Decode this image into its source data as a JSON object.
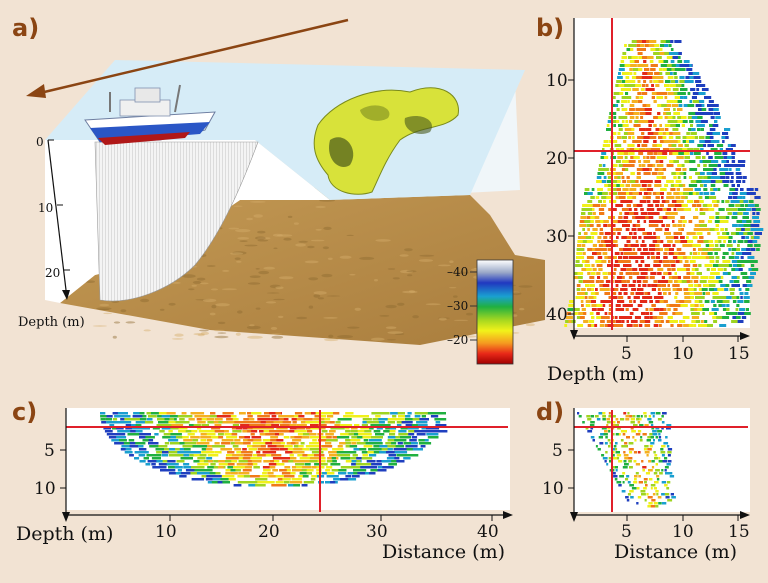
{
  "panel_labels": {
    "a": "a)",
    "b": "b)",
    "c": "c)",
    "d": "d)"
  },
  "panel_a": {
    "depth_label": "Depth (m)",
    "depth_ticks": [
      "0",
      "10",
      "20"
    ],
    "colorbar_ticks": [
      "–40",
      "–30",
      "–20"
    ]
  },
  "panel_b": {
    "depth_ticks": [
      "10",
      "20",
      "30",
      "40"
    ],
    "x_ticks": [
      "5",
      "10",
      "15"
    ],
    "xlabel": "Depth (m)"
  },
  "panel_c": {
    "ylabel": "Depth (m)",
    "y_ticks": [
      "5",
      "10"
    ],
    "x_ticks": [
      "10",
      "20",
      "30",
      "40"
    ],
    "xlabel": "Distance (m)"
  },
  "panel_d": {
    "y_ticks": [
      "5",
      "10"
    ],
    "x_ticks": [
      "5",
      "10",
      "15"
    ],
    "xlabel": "Distance (m)"
  },
  "colors": {
    "background": "#f2e3d3",
    "label": "#8b4513",
    "crosshair": "#e0202a",
    "sea_surface": "#d6ecf7",
    "seabed": "#b98a45"
  }
}
